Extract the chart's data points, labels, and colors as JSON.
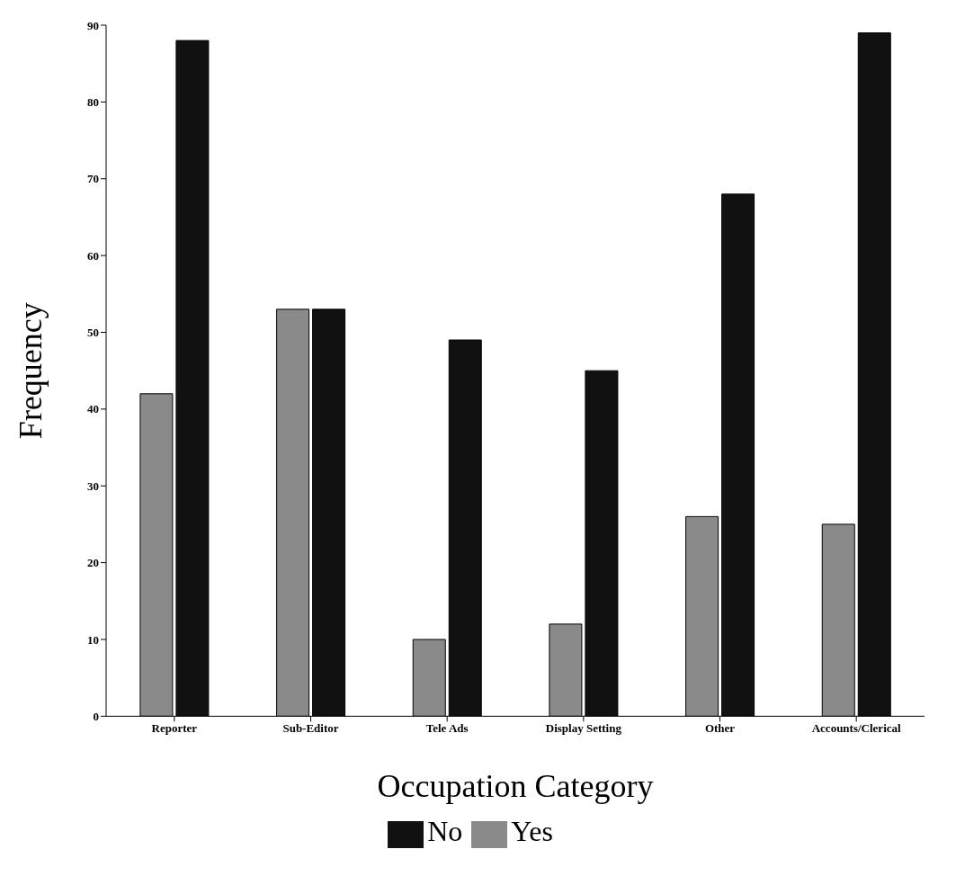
{
  "chart_data": {
    "type": "bar",
    "xlabel": "Occupation Category",
    "ylabel": "Frequency",
    "categories": [
      "Reporter",
      "Sub-Editor",
      "Tele Ads",
      "Display Setting",
      "Other",
      "Accounts/Clerical"
    ],
    "series": [
      {
        "name": "Yes",
        "color": "#8a8a8a",
        "values": [
          42,
          53,
          10,
          12,
          26,
          25
        ]
      },
      {
        "name": "No",
        "color": "#111111",
        "values": [
          88,
          53,
          49,
          45,
          68,
          89
        ]
      }
    ],
    "ylim": [
      0,
      90
    ],
    "yticks": [
      0,
      10,
      20,
      30,
      40,
      50,
      60,
      70,
      80,
      90
    ],
    "grid": false,
    "legend": "bottom"
  }
}
